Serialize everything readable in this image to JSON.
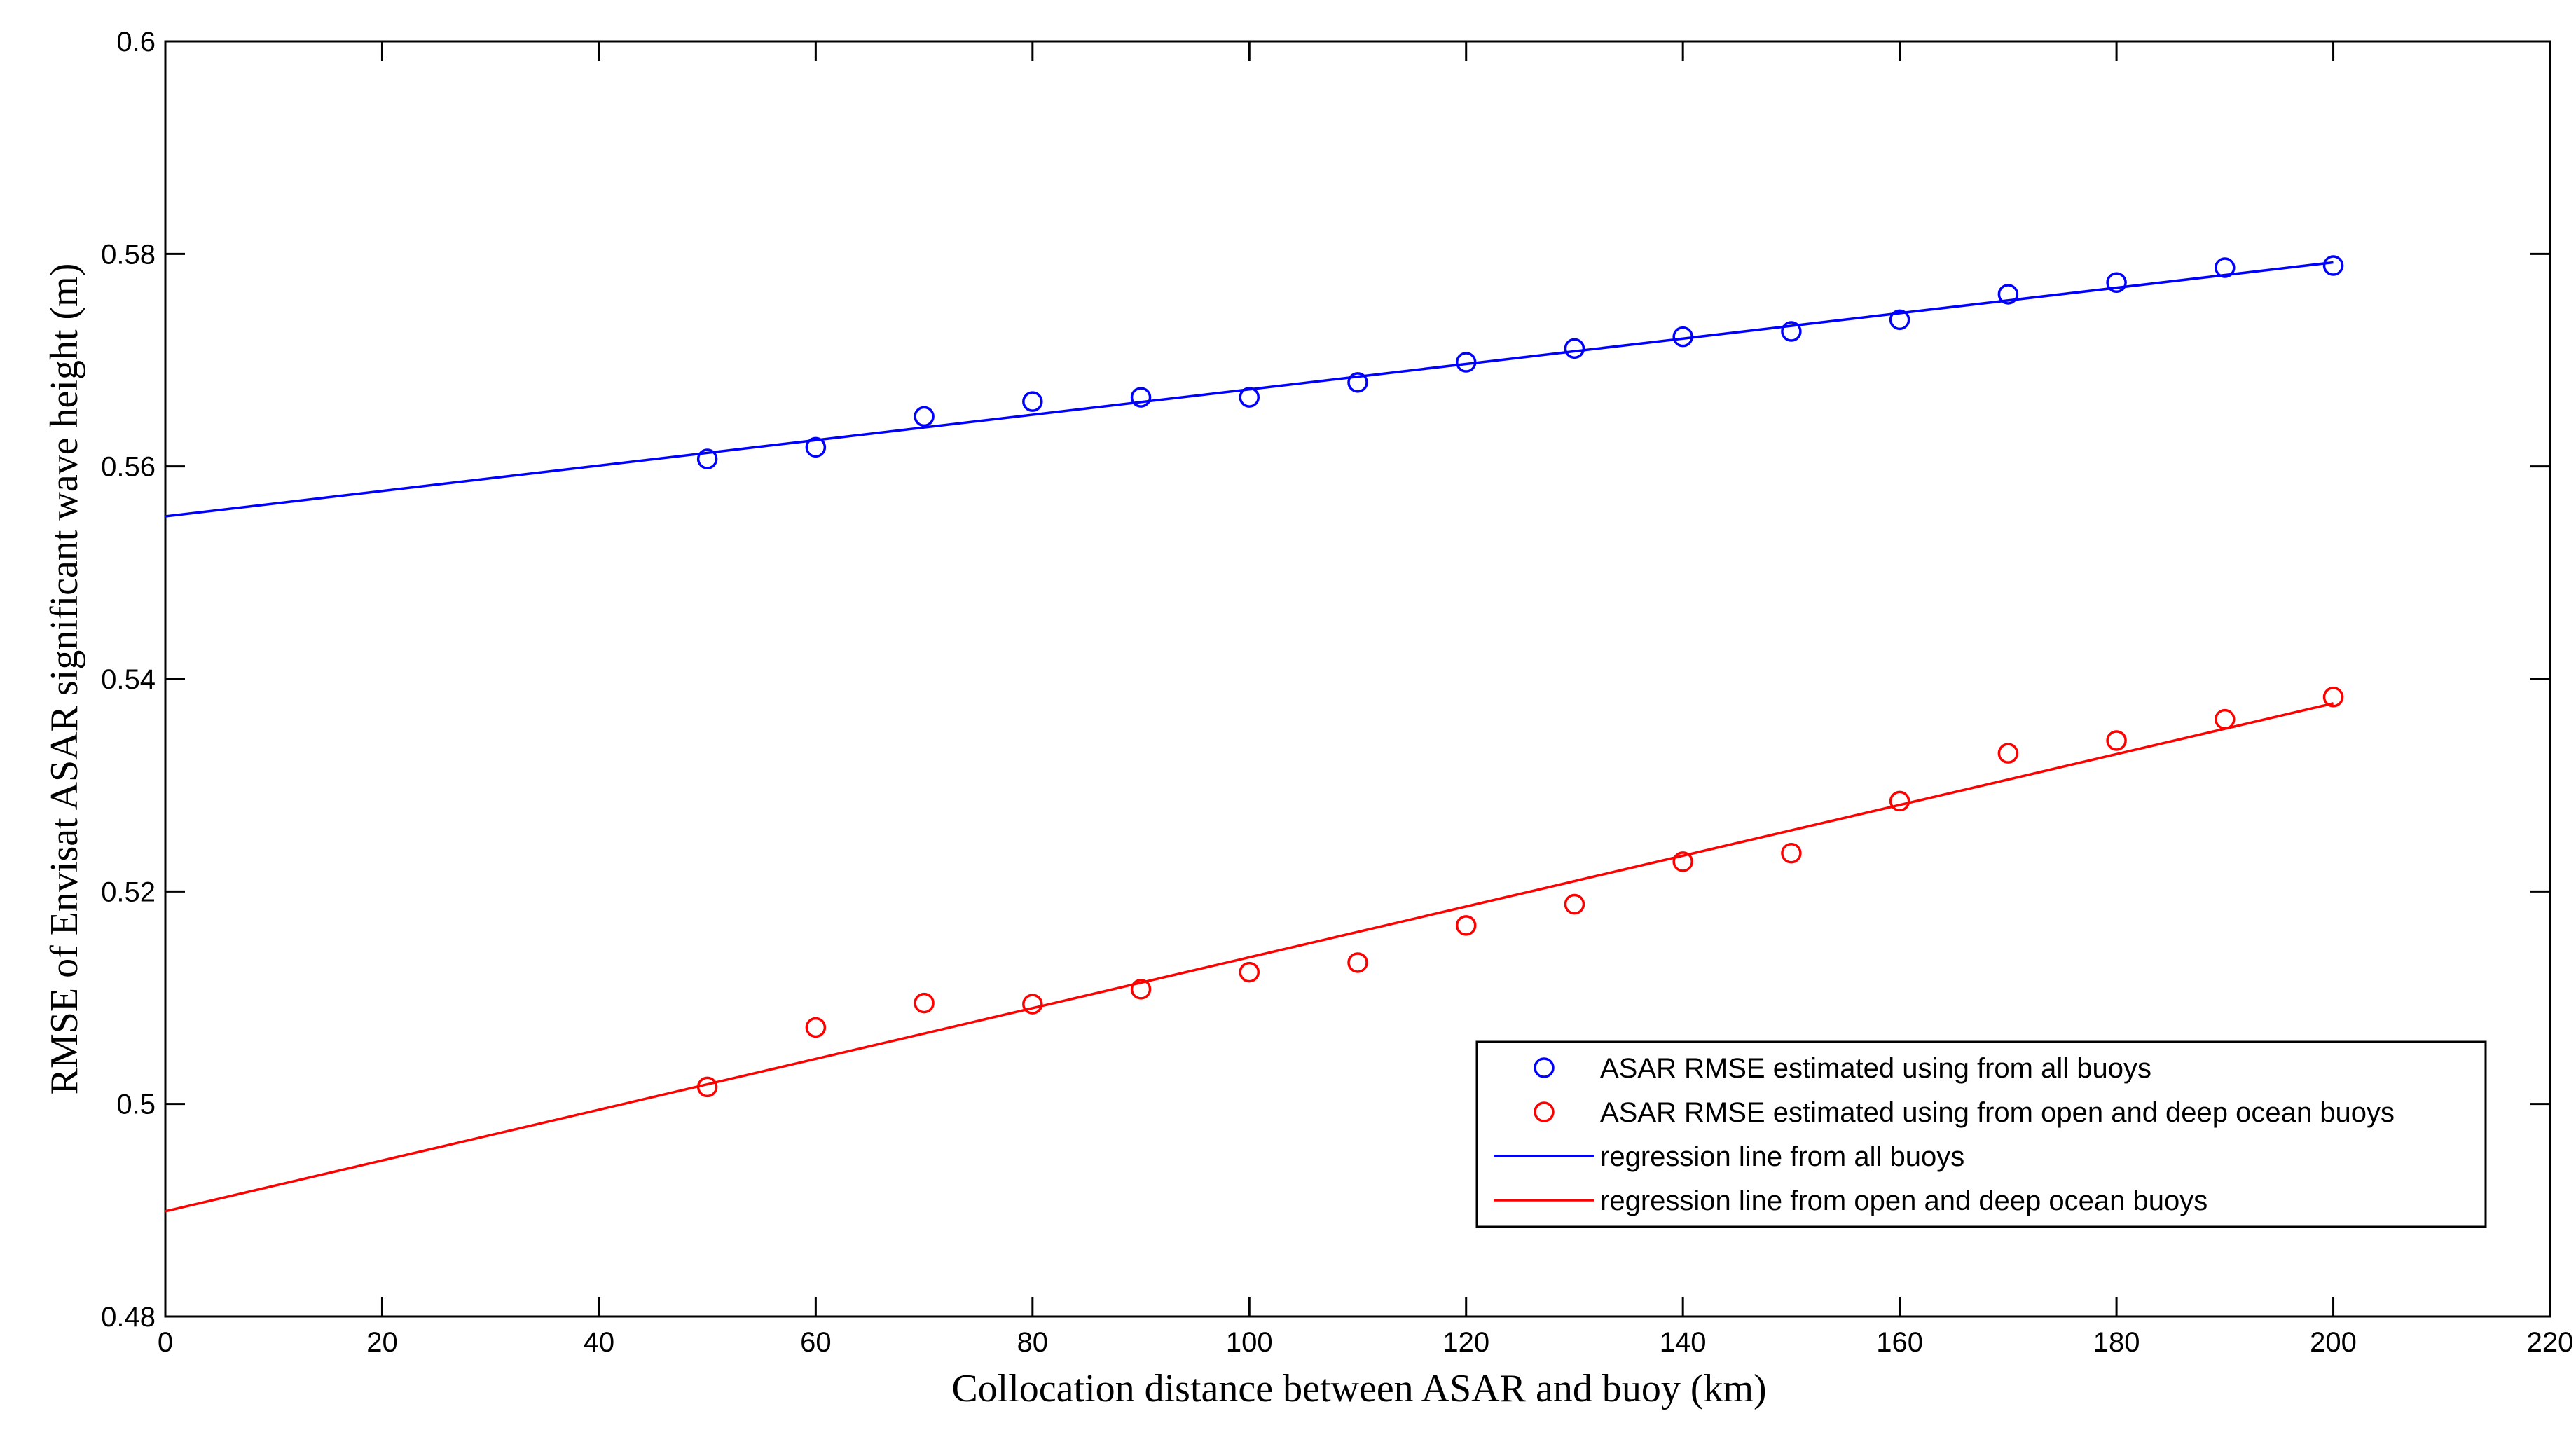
{
  "chart_data": {
    "type": "scatter",
    "xlabel": "Collocation distance between ASAR and buoy (km)",
    "ylabel": "RMSE of Envisat ASAR significant wave height (m)",
    "xlim": [
      0,
      220
    ],
    "ylim": [
      0.48,
      0.6
    ],
    "xticks": [
      0,
      20,
      40,
      60,
      80,
      100,
      120,
      140,
      160,
      180,
      200,
      220
    ],
    "yticks": [
      0.48,
      0.5,
      0.52,
      0.54,
      0.56,
      0.58,
      0.6
    ],
    "xtick_labels": [
      "0",
      "20",
      "40",
      "60",
      "80",
      "100",
      "120",
      "140",
      "160",
      "180",
      "200",
      "220"
    ],
    "ytick_labels": [
      "0.48",
      "0.5",
      "0.52",
      "0.54",
      "0.56",
      "0.58",
      "0.6"
    ],
    "grid": false,
    "legend_position": "bottom-right",
    "x": [
      50,
      60,
      70,
      80,
      90,
      100,
      110,
      120,
      130,
      140,
      150,
      160,
      170,
      180,
      190,
      200
    ],
    "series": [
      {
        "name": "ASAR RMSE estimated using from all buoys",
        "kind": "markers",
        "color": "#0000ff",
        "values": [
          0.5607,
          0.5618,
          0.5647,
          0.5661,
          0.5665,
          0.5665,
          0.5679,
          0.5698,
          0.5711,
          0.5722,
          0.5727,
          0.5738,
          0.5762,
          0.5773,
          0.5787,
          0.5789
        ]
      },
      {
        "name": "ASAR RMSE estimated using from open and deep ocean buoys",
        "kind": "markers",
        "color": "#ff0000",
        "values": [
          0.5016,
          0.5072,
          0.5095,
          0.5094,
          0.5108,
          0.5124,
          0.5133,
          0.5168,
          0.5188,
          0.5228,
          0.5236,
          0.5285,
          0.533,
          0.5342,
          0.5362,
          0.5383
        ]
      },
      {
        "name": "regression line from all buoys",
        "kind": "line",
        "color": "#0000ff",
        "x": [
          0,
          200
        ],
        "values": [
          0.5553,
          0.5792
        ]
      },
      {
        "name": "regression line from open and deep ocean buoys",
        "kind": "line",
        "color": "#ff0000",
        "x": [
          0,
          200
        ],
        "values": [
          0.4899,
          0.5377
        ]
      }
    ]
  }
}
